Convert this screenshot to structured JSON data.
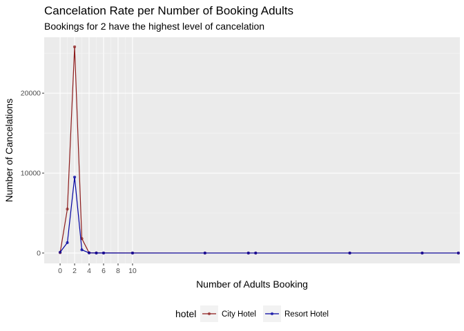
{
  "chart_data": {
    "type": "line",
    "title": "Cancelation Rate per Number of Booking Adults",
    "subtitle": "Bookings for 2 have the highest level of cancelation",
    "xlabel": "Number of Adults Booking",
    "ylabel": "Number of Cancelations",
    "x_ticks": [
      "0",
      "2",
      "4",
      "6",
      "8",
      "10"
    ],
    "y_ticks": [
      "0",
      "10000",
      "20000"
    ],
    "xlim": [
      -2.2,
      55.2
    ],
    "ylim": [
      -1300,
      27000
    ],
    "grid": true,
    "legend_position": "bottom",
    "legend_title": "hotel",
    "series": [
      {
        "name": "City Hotel",
        "color": "#8b1a1a",
        "points": [
          [
            0,
            50
          ],
          [
            1,
            5500
          ],
          [
            2,
            25800
          ],
          [
            3,
            1800
          ],
          [
            4,
            30
          ],
          [
            5,
            10
          ],
          [
            6,
            5
          ],
          [
            10,
            2
          ],
          [
            20,
            0
          ],
          [
            26,
            0
          ],
          [
            27,
            0
          ],
          [
            40,
            0
          ],
          [
            50,
            0
          ],
          [
            55,
            0
          ]
        ]
      },
      {
        "name": "Resort Hotel",
        "color": "#0000a0",
        "points": [
          [
            0,
            100
          ],
          [
            1,
            1300
          ],
          [
            2,
            9500
          ],
          [
            3,
            400
          ],
          [
            4,
            20
          ],
          [
            5,
            5
          ],
          [
            6,
            2
          ],
          [
            10,
            1
          ],
          [
            20,
            0
          ],
          [
            26,
            0
          ],
          [
            27,
            0
          ],
          [
            40,
            0
          ],
          [
            50,
            0
          ],
          [
            55,
            0
          ]
        ]
      }
    ]
  }
}
